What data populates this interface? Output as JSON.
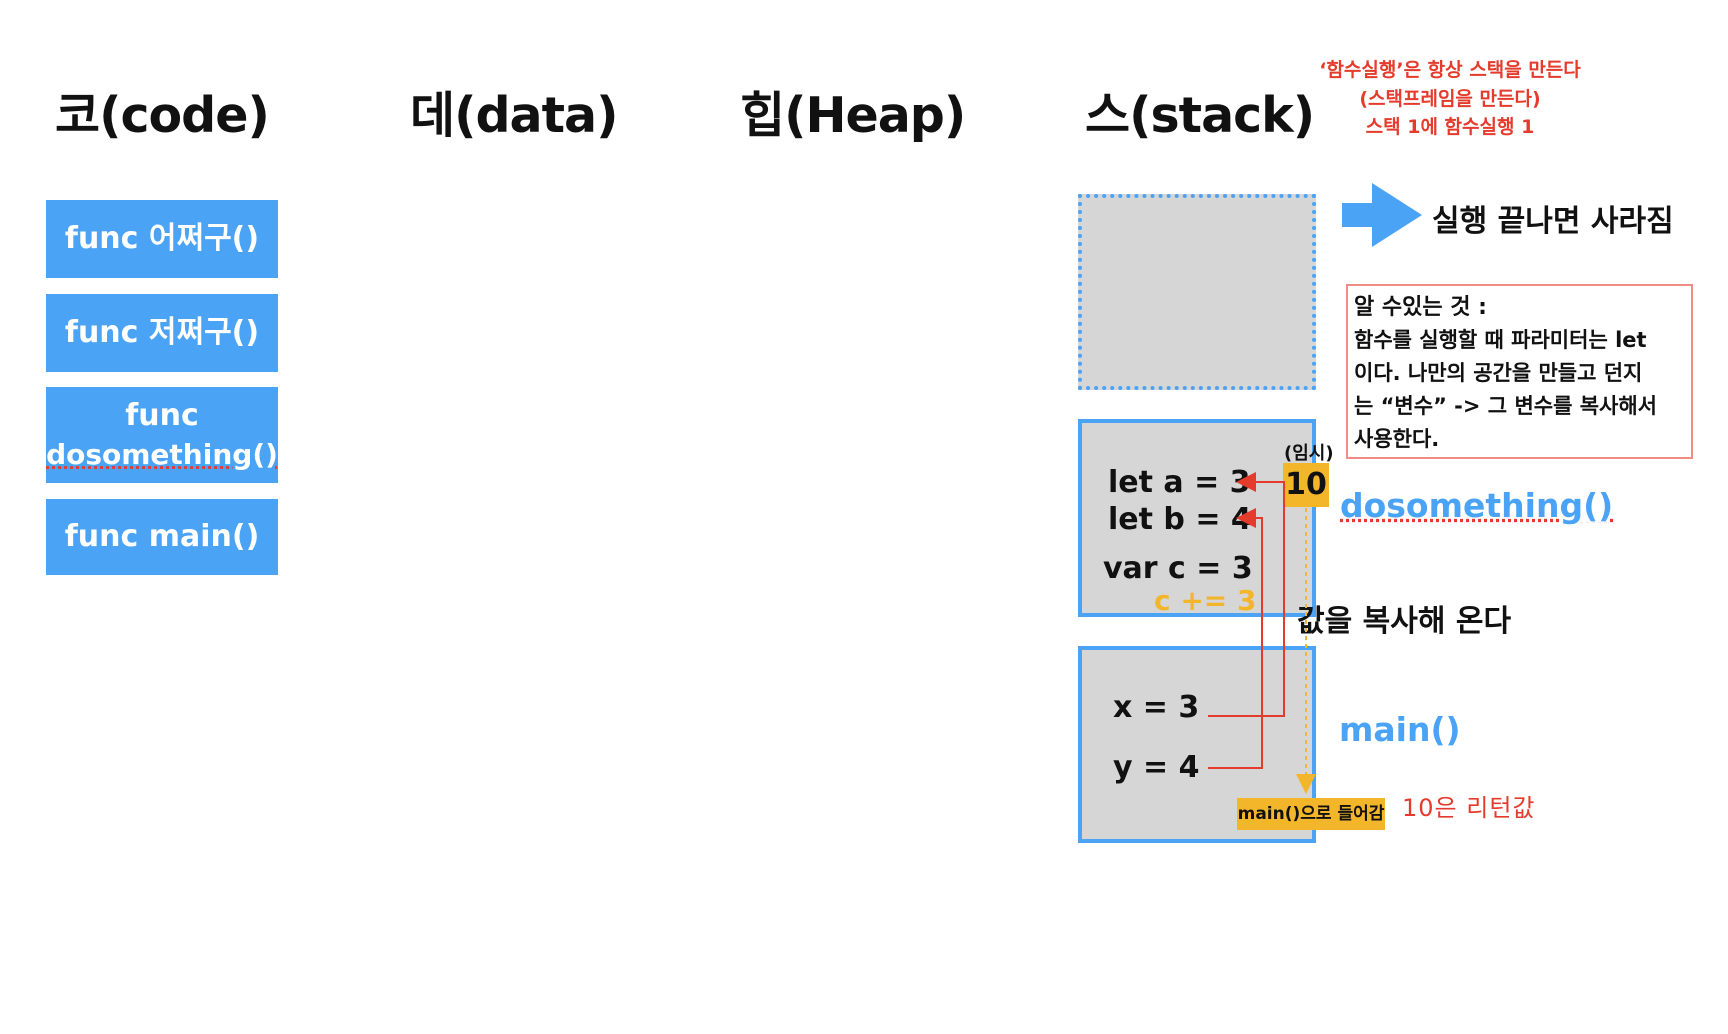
{
  "headings": {
    "code": "코(code)",
    "data": "데(data)",
    "heap": "힙(Heap)",
    "stack": "스(stack)"
  },
  "top_note": {
    "line1": "‘함수실행’은 항상 스택을 만든다",
    "line2": "(스택프레임을 만든다)",
    "line3": "스택 1에 함수실행 1"
  },
  "code_blocks": {
    "item1": "func 어쩌구()",
    "item2": "func 저쩌구()",
    "item3_line1": "func",
    "item3_line2": "dosomething()",
    "item4": "func main()"
  },
  "disappear_text": "실행 끝나면 사라짐",
  "info_box": {
    "line1": "알 수있는 것 :",
    "line2": "함수를 실행할 때 파라미터는 let",
    "line3": "이다. 나만의 공간을 만들고 던지",
    "line4": "는 “변수” -> 그 변수를 복사해서",
    "line5": "사용한다."
  },
  "dosomething_frame": {
    "var_a": "let a = 3",
    "var_b": "let b = 4",
    "var_c": "var c = 3",
    "op": "c += 3",
    "temp_label": "(임시)",
    "temp_value": "10",
    "name": "dosomething()"
  },
  "copy_label": "값을 복사해 온다",
  "main_frame": {
    "var_x": "x = 3",
    "var_y": "y = 4",
    "into_main": "main()으로 들어감",
    "name": "main()"
  },
  "return_note": "10은 리턴값",
  "colors": {
    "blue": "#4aa3f5",
    "red": "#e53b2c",
    "yellow": "#f3b62b",
    "frame_gray": "#d6d6d6"
  }
}
